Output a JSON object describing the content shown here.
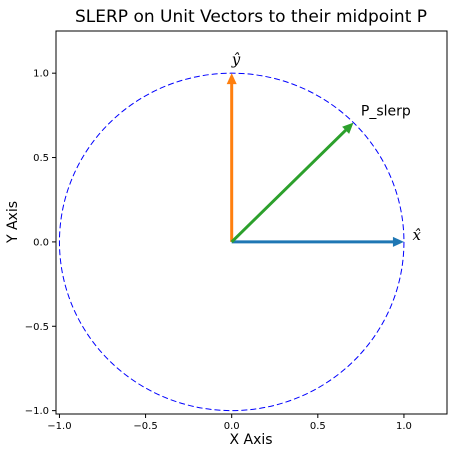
{
  "chart_data": {
    "type": "line",
    "title": "SLERP on Unit Vectors to their midpoint P",
    "xlabel": "X Axis",
    "ylabel": "Y Axis",
    "xlim": [
      -1.02,
      1.25
    ],
    "ylim": [
      -1.02,
      1.25
    ],
    "xticks": [
      {
        "value": -1.0,
        "label": "−1.0"
      },
      {
        "value": -0.5,
        "label": "−0.5"
      },
      {
        "value": 0.0,
        "label": "0.0"
      },
      {
        "value": 0.5,
        "label": "0.5"
      },
      {
        "value": 1.0,
        "label": "1.0"
      }
    ],
    "yticks": [
      {
        "value": -1.0,
        "label": "−1.0"
      },
      {
        "value": -0.5,
        "label": "−0.5"
      },
      {
        "value": 0.0,
        "label": "0.0"
      },
      {
        "value": 0.5,
        "label": "0.5"
      },
      {
        "value": 1.0,
        "label": "1.0"
      }
    ],
    "grid": false,
    "circle": {
      "center": [
        0,
        0
      ],
      "radius": 1.0,
      "color": "#0000ff",
      "style": "dashed"
    },
    "vectors": [
      {
        "from": [
          0,
          0
        ],
        "to": [
          1.0,
          0.0
        ],
        "color": "#1f77b4"
      },
      {
        "from": [
          0,
          0
        ],
        "to": [
          0.0,
          1.0
        ],
        "color": "#ff7f0e"
      },
      {
        "from": [
          0,
          0
        ],
        "to": [
          0.7071,
          0.7071
        ],
        "color": "#2ca02c"
      }
    ],
    "annotations": [
      {
        "text": "x̂",
        "x": 1.05,
        "y": 0.01,
        "math": true
      },
      {
        "text": "ŷ",
        "x": 0.0,
        "y": 1.05,
        "math": true
      },
      {
        "text": "P_slerp",
        "x": 0.75,
        "y": 0.75,
        "math": false
      }
    ]
  }
}
